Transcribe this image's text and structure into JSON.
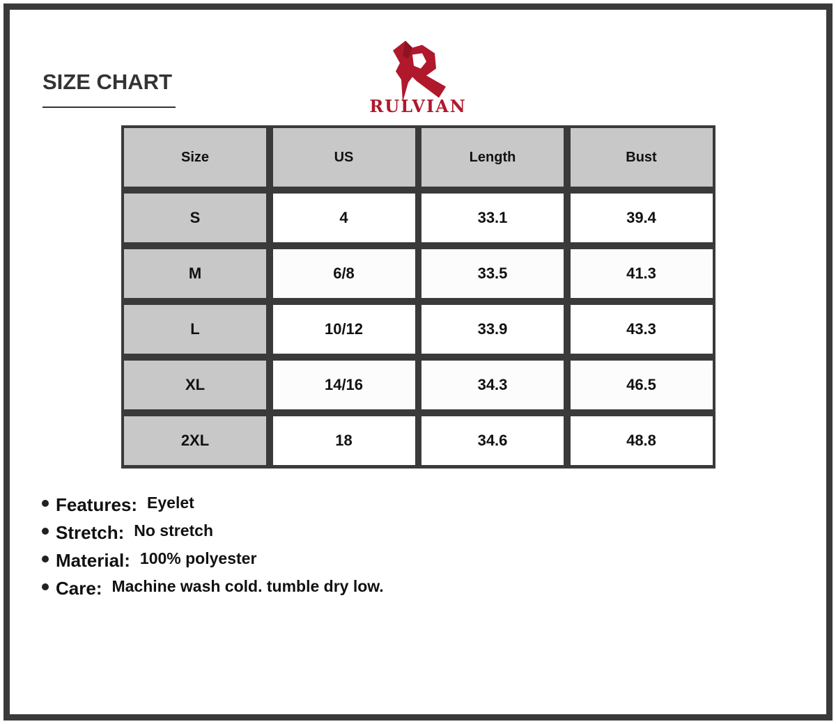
{
  "title": "SIZE CHART",
  "brand": {
    "name": "RULVIAN",
    "color": "#b0182b"
  },
  "table": {
    "headers": [
      "Size",
      "US",
      "Length",
      "Bust"
    ],
    "rows": [
      [
        "S",
        "4",
        "33.1",
        "39.4"
      ],
      [
        "M",
        "6/8",
        "33.5",
        "41.3"
      ],
      [
        "L",
        "10/12",
        "33.9",
        "43.3"
      ],
      [
        "XL",
        "14/16",
        "34.3",
        "46.5"
      ],
      [
        "2XL",
        "18",
        "34.6",
        "48.8"
      ]
    ]
  },
  "features": [
    {
      "label": "Features:",
      "value": "Eyelet"
    },
    {
      "label": "Stretch:",
      "value": "No stretch"
    },
    {
      "label": "Material:",
      "value": "100% polyester"
    },
    {
      "label": "Care:",
      "value": "Machine wash cold. tumble dry low."
    }
  ]
}
